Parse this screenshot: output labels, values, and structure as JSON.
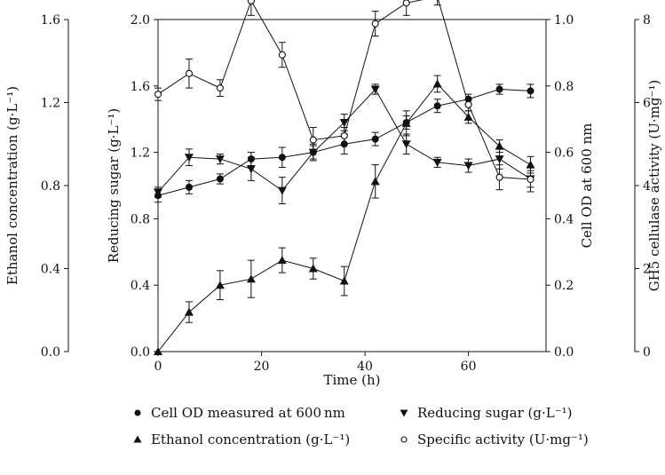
{
  "chart_data": {
    "type": "line",
    "title": "",
    "xlabel": "Time (h)",
    "xlim": [
      0,
      75
    ],
    "x_ticks": [
      "0",
      "20",
      "40",
      "60"
    ],
    "axes": {
      "ethanol": {
        "label": "Ethanol concentration (g·L⁻¹)",
        "lim": [
          0.0,
          1.6
        ],
        "ticks": [
          "0.0",
          "0.4",
          "0.8",
          "1.2",
          "1.6"
        ],
        "side": "far-left"
      },
      "sugar": {
        "label": "Reducing sugar (g·L⁻¹)",
        "lim": [
          0.0,
          2.0
        ],
        "ticks": [
          "0.0",
          "0.4",
          "0.8",
          "1.2",
          "1.6",
          "2.0"
        ],
        "side": "left"
      },
      "od": {
        "label": "Cell OD at 600 nm",
        "lim": [
          0.0,
          1.0
        ],
        "ticks": [
          "0.0",
          "0.2",
          "0.4",
          "0.6",
          "0.8",
          "1.0"
        ],
        "side": "right"
      },
      "activity": {
        "label": "GH5 cellulase activity (U·mg⁻¹)",
        "lim": [
          0,
          8
        ],
        "ticks": [
          "0",
          "2",
          "4",
          "6",
          "8"
        ],
        "side": "far-right"
      }
    },
    "x": [
      0,
      6,
      12,
      18,
      24,
      30,
      36,
      42,
      48,
      54,
      60,
      66,
      72
    ],
    "series": [
      {
        "name": "Cell OD measured at 600 nm",
        "axis": "od",
        "marker": "filled-circle",
        "values": [
          0.47,
          0.495,
          0.52,
          0.58,
          0.585,
          0.6,
          0.625,
          0.64,
          0.69,
          0.74,
          0.76,
          0.79,
          0.785
        ],
        "errors": [
          0.02,
          0.02,
          0.015,
          0.02,
          0.03,
          0.02,
          0.03,
          0.02,
          0.02,
          0.02,
          0.015,
          0.015,
          0.02
        ]
      },
      {
        "name": "Reducing sugar (g·L⁻¹)",
        "axis": "sugar",
        "marker": "filled-triangle-down",
        "values": [
          0.96,
          1.17,
          1.16,
          1.1,
          0.97,
          1.2,
          1.38,
          1.58,
          1.25,
          1.14,
          1.12,
          1.16,
          1.04
        ],
        "errors": [
          0.03,
          0.05,
          0.03,
          0.07,
          0.08,
          0.05,
          0.05,
          0.03,
          0.06,
          0.03,
          0.04,
          0.06,
          0.05
        ]
      },
      {
        "name": "Ethanol concentration (g·L⁻¹)",
        "axis": "ethanol",
        "marker": "filled-triangle-up",
        "values": [
          0.0,
          0.19,
          0.32,
          0.35,
          0.44,
          0.4,
          0.34,
          0.82,
          1.1,
          1.29,
          1.13,
          0.99,
          0.9
        ],
        "errors": [
          0.0,
          0.05,
          0.07,
          0.09,
          0.06,
          0.05,
          0.07,
          0.08,
          0.06,
          0.04,
          0.03,
          0.03,
          0.04
        ]
      },
      {
        "name": "Specific activity (U·mg⁻¹)",
        "axis": "activity",
        "marker": "open-circle",
        "values": [
          6.2,
          6.7,
          6.35,
          8.45,
          7.15,
          5.1,
          5.2,
          7.9,
          8.4,
          8.55,
          5.95,
          4.2,
          4.15
        ],
        "errors": [
          0.15,
          0.35,
          0.2,
          0.35,
          0.3,
          0.3,
          0.2,
          0.3,
          0.3,
          0.2,
          0.15,
          0.3,
          0.3
        ]
      }
    ],
    "legend": {
      "placement": "bottom",
      "columns": 2
    }
  }
}
